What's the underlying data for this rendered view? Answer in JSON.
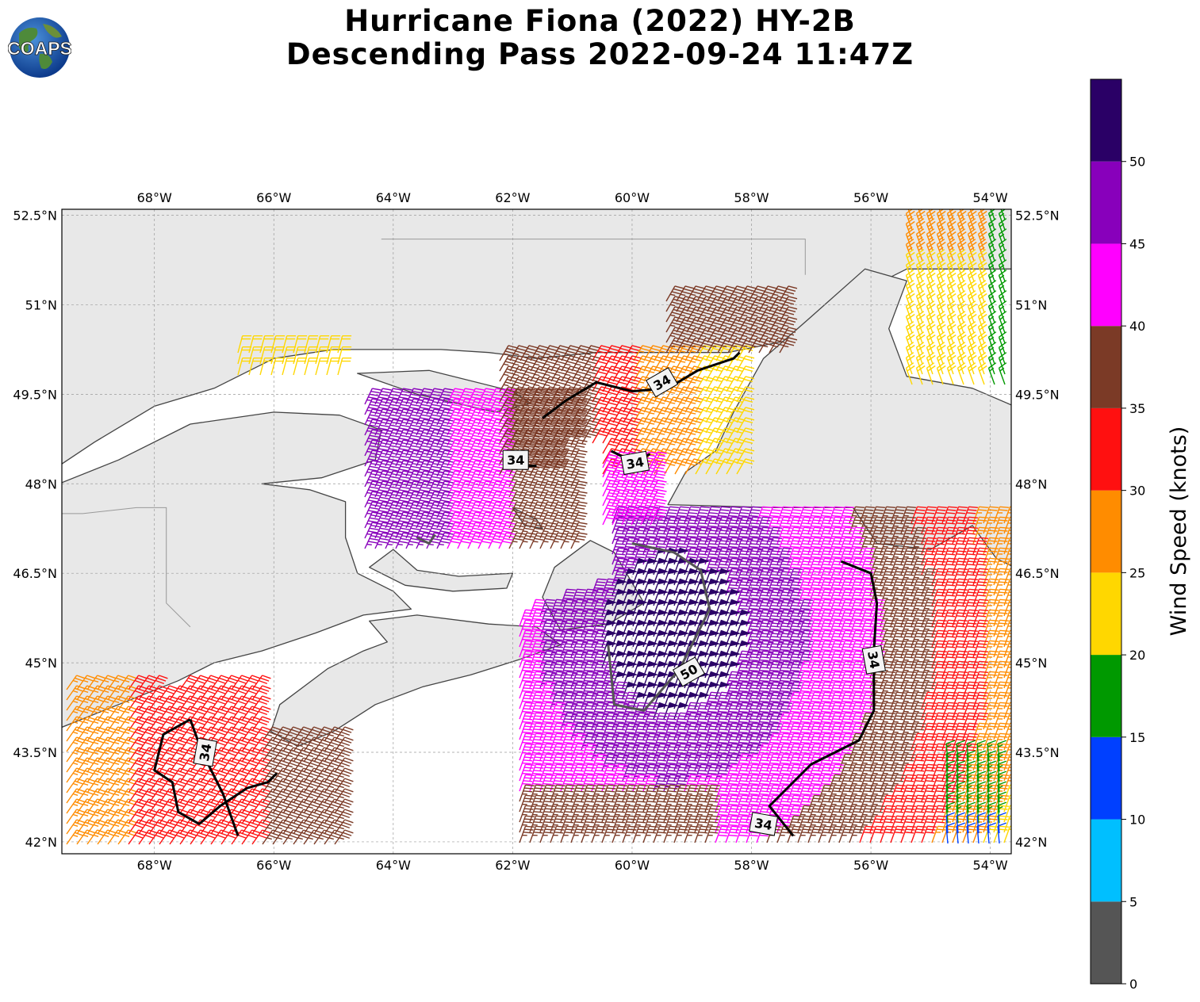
{
  "title": {
    "line1": "Hurricane Fiona (2022) HY-2B",
    "line2": "Descending Pass 2022-09-24 11:47Z"
  },
  "logo": {
    "text": "COAPS",
    "icon": "globe-icon"
  },
  "map": {
    "lon_range": [
      -69.55,
      -53.65
    ],
    "lat_range": [
      41.8,
      52.6
    ],
    "lon_ticks": [
      {
        "value": -68,
        "label": "68°W"
      },
      {
        "value": -66,
        "label": "66°W"
      },
      {
        "value": -64,
        "label": "64°W"
      },
      {
        "value": -62,
        "label": "62°W"
      },
      {
        "value": -60,
        "label": "60°W"
      },
      {
        "value": -58,
        "label": "58°W"
      },
      {
        "value": -56,
        "label": "56°W"
      },
      {
        "value": -54,
        "label": "54°W"
      }
    ],
    "lat_ticks": [
      {
        "value": 52.5,
        "label": "52.5°N"
      },
      {
        "value": 51,
        "label": "51°N"
      },
      {
        "value": 49.5,
        "label": "49.5°N"
      },
      {
        "value": 48,
        "label": "48°N"
      },
      {
        "value": 46.5,
        "label": "46.5°N"
      },
      {
        "value": 45,
        "label": "45°N"
      },
      {
        "value": 43.5,
        "label": "43.5°N"
      },
      {
        "value": 42,
        "label": "42°N"
      }
    ],
    "grid": true,
    "land_color": "#e8e8e8",
    "water_color": "#ffffff",
    "coast_color": "#444444"
  },
  "contours": [
    {
      "value": "34",
      "color": "#000000",
      "label": "34"
    },
    {
      "value": "50",
      "color": "#555555",
      "label": "50"
    }
  ],
  "colorbar": {
    "title": "Wind Speed (knots)",
    "tick_labels": [
      "0",
      "5",
      "10",
      "15",
      "20",
      "25",
      "30",
      "35",
      "40",
      "45",
      "50"
    ],
    "bins": [
      {
        "min": 0,
        "max": 5,
        "color": "#555555"
      },
      {
        "min": 5,
        "max": 10,
        "color": "#00bfff"
      },
      {
        "min": 10,
        "max": 15,
        "color": "#0040ff"
      },
      {
        "min": 15,
        "max": 20,
        "color": "#009900"
      },
      {
        "min": 20,
        "max": 25,
        "color": "#ffd700"
      },
      {
        "min": 25,
        "max": 30,
        "color": "#ff8c00"
      },
      {
        "min": 30,
        "max": 35,
        "color": "#ff1010"
      },
      {
        "min": 35,
        "max": 40,
        "color": "#7b3a26"
      },
      {
        "min": 40,
        "max": 45,
        "color": "#ff00ff"
      },
      {
        "min": 45,
        "max": 50,
        "color": "#8800bb"
      },
      {
        "min": 50,
        "max": 55,
        "color": "#2a0066"
      }
    ]
  }
}
